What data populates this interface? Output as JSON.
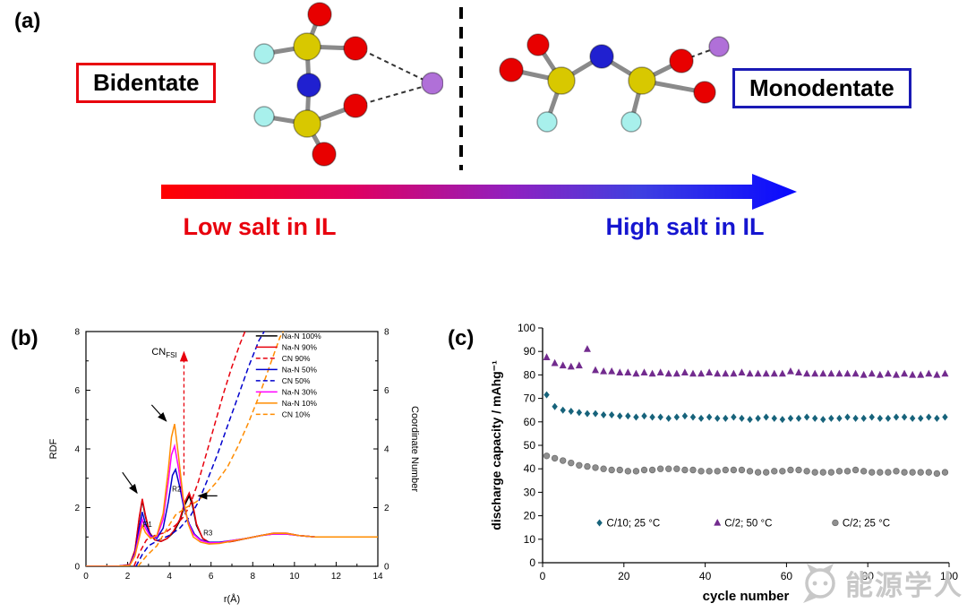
{
  "panel_a": {
    "label": "(a)",
    "bidentate": "Bidentate",
    "monodentate": "Monodentate",
    "low_salt": "Low salt in IL",
    "high_salt": "High salt in IL",
    "bidentate_color": "#e8000d",
    "monodentate_color": "#1a1ab5",
    "low_salt_color": "#e8000d",
    "high_salt_color": "#1515d0",
    "arrow_gradient": [
      "#ff0000",
      "#e00060",
      "#9020c0",
      "#4040e0",
      "#0808ff"
    ],
    "atom_colors": {
      "S": "#d8c800",
      "N": "#2020d0",
      "O": "#e80000",
      "F": "#a8f0ec",
      "Na": "#b070d8"
    }
  },
  "chart_data": [
    {
      "panel": "b",
      "label": "(b)",
      "type": "line",
      "xlabel": "r(Å)",
      "ylabel_left": "RDF",
      "ylabel_right": "Coordinate Number",
      "xlim": [
        0,
        14
      ],
      "ylim": [
        0,
        8
      ],
      "xticks_major": [
        0,
        2,
        4,
        6,
        8,
        10,
        12,
        14
      ],
      "yticks_major": [
        0,
        2,
        4,
        6,
        8
      ],
      "legend_position": "top-right-inside",
      "series": [
        {
          "name": "Na-N 100%",
          "color": "#000000",
          "style": "solid",
          "x": [
            0,
            1.5,
            2.1,
            2.35,
            2.55,
            2.7,
            2.85,
            3.05,
            3.3,
            3.6,
            3.9,
            4.2,
            4.5,
            4.75,
            4.95,
            5.1,
            5.3,
            5.6,
            5.9,
            6.3,
            7,
            7.7,
            8.4,
            9,
            9.6,
            10.2,
            11,
            12,
            13,
            14
          ],
          "y": [
            0,
            0,
            0.05,
            0.5,
            1.6,
            2.25,
            1.7,
            1.15,
            0.9,
            0.85,
            0.95,
            1.15,
            1.55,
            2.1,
            2.4,
            2.1,
            1.4,
            0.95,
            0.82,
            0.8,
            0.85,
            0.95,
            1.05,
            1.12,
            1.12,
            1.05,
            1.0,
            1.0,
            1.0,
            1.0
          ]
        },
        {
          "name": "Na-N 90%",
          "color": "#e8000d",
          "style": "solid",
          "x": [
            0,
            1.5,
            2.1,
            2.35,
            2.55,
            2.7,
            2.85,
            3.05,
            3.3,
            3.6,
            3.9,
            4.2,
            4.5,
            4.75,
            4.95,
            5.1,
            5.3,
            5.6,
            5.9,
            6.3,
            7,
            7.7,
            8.4,
            9,
            9.6,
            10.2,
            11,
            12,
            13,
            14
          ],
          "y": [
            0,
            0,
            0.06,
            0.55,
            1.65,
            2.3,
            1.75,
            1.15,
            0.9,
            0.85,
            0.95,
            1.2,
            1.6,
            2.2,
            2.5,
            2.2,
            1.45,
            0.95,
            0.82,
            0.8,
            0.85,
            0.95,
            1.05,
            1.13,
            1.13,
            1.05,
            1.0,
            1.0,
            1.0,
            1.0
          ]
        },
        {
          "name": "CN 90%",
          "color": "#e8000d",
          "style": "dashed",
          "x": [
            2.3,
            2.6,
            2.9,
            3.3,
            3.8,
            4.3,
            4.7,
            5.0,
            5.4,
            5.8,
            6.2,
            6.6,
            7.0,
            7.4,
            7.8
          ],
          "y": [
            0,
            0.5,
            0.9,
            1.05,
            1.15,
            1.4,
            1.7,
            2.1,
            2.9,
            3.9,
            4.9,
            5.9,
            6.8,
            7.6,
            8.3
          ]
        },
        {
          "name": "Na-N 50%",
          "color": "#0000cd",
          "style": "solid",
          "x": [
            0,
            1.5,
            2.1,
            2.35,
            2.55,
            2.7,
            2.85,
            3.1,
            3.4,
            3.7,
            3.95,
            4.15,
            4.3,
            4.5,
            4.7,
            4.95,
            5.2,
            5.5,
            5.9,
            6.4,
            7,
            7.7,
            8.4,
            9,
            9.6,
            10.2,
            11,
            12,
            13,
            14
          ],
          "y": [
            0,
            0,
            0.05,
            0.45,
            1.3,
            1.85,
            1.45,
            1.05,
            0.95,
            1.3,
            2.2,
            3.1,
            3.3,
            2.7,
            2.0,
            1.45,
            1.1,
            0.9,
            0.82,
            0.82,
            0.88,
            0.95,
            1.05,
            1.1,
            1.1,
            1.05,
            1.0,
            1.0,
            1.0,
            1.0
          ]
        },
        {
          "name": "CN 50%",
          "color": "#0000cd",
          "style": "dashed",
          "x": [
            2.4,
            2.7,
            3.0,
            3.5,
            4.0,
            4.5,
            5.0,
            5.4,
            5.8,
            6.3,
            6.8,
            7.3,
            7.8,
            8.3,
            8.8
          ],
          "y": [
            0,
            0.4,
            0.7,
            0.9,
            1.05,
            1.3,
            1.7,
            2.2,
            2.9,
            3.8,
            4.8,
            5.8,
            6.8,
            7.7,
            8.3
          ]
        },
        {
          "name": "Na-N 30%",
          "color": "#ff00ff",
          "style": "solid",
          "x": [
            0,
            1.5,
            2.1,
            2.35,
            2.55,
            2.7,
            2.85,
            3.1,
            3.4,
            3.7,
            3.95,
            4.1,
            4.25,
            4.45,
            4.65,
            4.9,
            5.15,
            5.5,
            5.9,
            6.4,
            7,
            7.7,
            8.4,
            9,
            9.6,
            10.2,
            11,
            12,
            13,
            14
          ],
          "y": [
            0,
            0,
            0.04,
            0.4,
            1.1,
            1.6,
            1.3,
            1.0,
            1.0,
            1.6,
            2.9,
            3.8,
            4.1,
            3.3,
            2.3,
            1.5,
            1.1,
            0.88,
            0.8,
            0.8,
            0.88,
            0.95,
            1.05,
            1.1,
            1.1,
            1.05,
            1.0,
            1.0,
            1.0,
            1.0
          ]
        },
        {
          "name": "Na-N 10%",
          "color": "#ff8c00",
          "style": "solid",
          "x": [
            0,
            1.5,
            2.1,
            2.35,
            2.55,
            2.7,
            2.85,
            3.1,
            3.4,
            3.7,
            3.95,
            4.1,
            4.25,
            4.45,
            4.65,
            4.9,
            5.15,
            5.5,
            5.9,
            6.4,
            7,
            7.7,
            8.4,
            9,
            9.6,
            10.2,
            11,
            12,
            13,
            14
          ],
          "y": [
            0,
            0,
            0.03,
            0.35,
            0.95,
            1.4,
            1.15,
            0.95,
            1.05,
            1.8,
            3.3,
            4.4,
            4.85,
            3.7,
            2.4,
            1.45,
            1.0,
            0.82,
            0.76,
            0.78,
            0.86,
            0.95,
            1.05,
            1.12,
            1.12,
            1.05,
            1.0,
            1.0,
            1.0,
            1.0
          ]
        },
        {
          "name": "CN 10%",
          "color": "#ff8c00",
          "style": "dashed",
          "x": [
            2.5,
            2.9,
            3.4,
            3.9,
            4.3,
            4.8,
            5.3,
            5.8,
            6.3,
            6.8,
            7.3,
            7.8,
            8.3,
            8.8,
            9.3,
            9.7
          ],
          "y": [
            0,
            0.35,
            0.7,
            1.3,
            1.75,
            2.0,
            2.2,
            2.5,
            2.9,
            3.4,
            4.1,
            4.9,
            5.8,
            6.8,
            7.8,
            8.3
          ]
        }
      ],
      "annotations": {
        "cn_label": {
          "main": "CN",
          "sub": "FSI",
          "x": 3.15,
          "y": 7.2
        },
        "red_arrow": {
          "x": 4.7,
          "y1": 3.1,
          "y2": 7.3,
          "color": "#e8000d"
        },
        "black_arrows": [
          {
            "x1": 1.75,
            "y1": 3.2,
            "x2": 2.45,
            "y2": 2.5
          },
          {
            "x1": 3.15,
            "y1": 5.5,
            "x2": 3.85,
            "y2": 4.95
          },
          {
            "x1": 6.3,
            "y1": 2.4,
            "x2": 5.4,
            "y2": 2.4
          }
        ],
        "r_labels": [
          {
            "text": "R1",
            "x": 2.95,
            "y": 1.35
          },
          {
            "text": "R2",
            "x": 4.35,
            "y": 2.55
          },
          {
            "text": "R3",
            "x": 5.85,
            "y": 1.05
          }
        ]
      }
    },
    {
      "panel": "c",
      "label": "(c)",
      "type": "scatter",
      "xlabel": "cycle number",
      "ylabel": "discharge capacity / mAhg⁻¹",
      "xlim": [
        0,
        100
      ],
      "ylim": [
        0,
        100
      ],
      "xticks": [
        0,
        20,
        40,
        60,
        80,
        100
      ],
      "yticks": [
        0,
        10,
        20,
        30,
        40,
        50,
        60,
        70,
        80,
        90,
        100
      ],
      "legend_position": "inside-bottom",
      "x": [
        1,
        3,
        5,
        7,
        9,
        11,
        13,
        15,
        17,
        19,
        21,
        23,
        25,
        27,
        29,
        31,
        33,
        35,
        37,
        39,
        41,
        43,
        45,
        47,
        49,
        51,
        53,
        55,
        57,
        59,
        61,
        63,
        65,
        67,
        69,
        71,
        73,
        75,
        77,
        79,
        81,
        83,
        85,
        87,
        89,
        91,
        93,
        95,
        97,
        99
      ],
      "series": [
        {
          "name": "C/10; 25 °C",
          "marker": "diamond",
          "color": "#17637b",
          "values": [
            71.5,
            66.5,
            65,
            64.5,
            64,
            63.5,
            63.5,
            63,
            63,
            62.5,
            62.5,
            62,
            62.5,
            62,
            62,
            61.5,
            62,
            62.5,
            62,
            61.5,
            62,
            61.5,
            61.5,
            62,
            61.5,
            61,
            61.5,
            62,
            61.5,
            61,
            61.5,
            61.5,
            62,
            61.5,
            61,
            61.5,
            61.5,
            62,
            61.5,
            61.5,
            62,
            61.5,
            61.5,
            62,
            62,
            61.5,
            61.5,
            62,
            61.5,
            62
          ]
        },
        {
          "name": "C/2; 50 °C",
          "marker": "triangle",
          "color": "#722b8e",
          "values": [
            87.5,
            85,
            84,
            83.5,
            84,
            91,
            82,
            81.5,
            81.5,
            81,
            81,
            80.5,
            81,
            80.5,
            81,
            80.5,
            80.5,
            81,
            80.5,
            80.5,
            81,
            80.5,
            80.5,
            80.5,
            81,
            80.5,
            80.5,
            80.5,
            80.5,
            80.5,
            81.5,
            81,
            80.5,
            80.5,
            80.5,
            80.5,
            80.5,
            80.5,
            80.5,
            80,
            80.5,
            80,
            80.5,
            80,
            80.5,
            80,
            80,
            80.5,
            80,
            80.5
          ]
        },
        {
          "name": "C/2; 25 °C",
          "marker": "circle",
          "color": "#8f8f8f",
          "values": [
            45.5,
            44.5,
            43.5,
            42.5,
            41.5,
            41,
            40.5,
            40,
            39.5,
            39.5,
            39,
            39,
            39.5,
            39.5,
            40,
            40,
            40,
            39.5,
            39.5,
            39,
            39,
            39,
            39.5,
            39.5,
            39.5,
            39,
            38.5,
            38.5,
            39,
            39,
            39.5,
            39.5,
            39,
            38.5,
            38.5,
            38.5,
            39,
            39,
            39.5,
            39,
            38.5,
            38.5,
            38.5,
            39,
            38.5,
            38.5,
            38.5,
            38.5,
            38,
            38.5
          ]
        }
      ]
    }
  ],
  "watermark": {
    "text": "能源学人"
  }
}
